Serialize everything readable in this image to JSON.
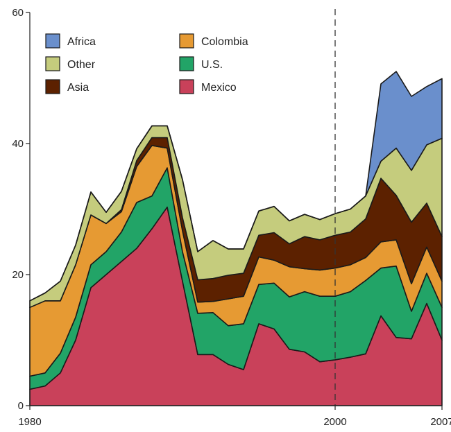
{
  "chart_data": {
    "type": "area",
    "stacked": true,
    "x": [
      1980,
      1981,
      1982,
      1983,
      1984,
      1985,
      1986,
      1987,
      1988,
      1989,
      1990,
      1991,
      1992,
      1993,
      1994,
      1995,
      1996,
      1997,
      1998,
      1999,
      2000,
      2001,
      2002,
      2003,
      2004,
      2005,
      2006,
      2007
    ],
    "series": [
      {
        "name": "Mexico",
        "color": "#c9415a",
        "values": [
          2.5,
          3.0,
          5.0,
          10.0,
          18.0,
          20.0,
          22.0,
          24.0,
          27.0,
          30.3,
          19.0,
          7.8,
          7.8,
          6.3,
          5.5,
          12.5,
          11.7,
          8.6,
          8.2,
          6.7,
          7.0,
          7.4,
          7.9,
          13.7,
          10.4,
          10.2,
          15.6,
          10.0
        ]
      },
      {
        "name": "U.S.",
        "color": "#22a467",
        "values": [
          2.0,
          2.0,
          3.0,
          3.5,
          3.5,
          3.5,
          4.5,
          7.0,
          5.0,
          6.0,
          4.5,
          6.3,
          6.4,
          5.9,
          7.0,
          6.0,
          7.0,
          8.0,
          9.2,
          10.0,
          9.7,
          10.0,
          11.2,
          7.3,
          10.9,
          4.2,
          4.6,
          5.0
        ]
      },
      {
        "name": "Colombia",
        "color": "#e69a33",
        "values": [
          10.5,
          11.0,
          8.0,
          8.0,
          7.6,
          4.3,
          3.1,
          5.5,
          7.7,
          3.0,
          3.2,
          1.7,
          1.7,
          4.1,
          4.2,
          4.2,
          3.5,
          4.6,
          3.5,
          4.0,
          4.3,
          4.1,
          3.5,
          4.0,
          4.0,
          4.2,
          4.0,
          4.0
        ]
      },
      {
        "name": "Asia",
        "color": "#5c2100",
        "values": [
          0,
          0,
          0,
          0,
          0,
          0,
          0.3,
          0.9,
          1.2,
          1.6,
          2.0,
          3.4,
          3.5,
          3.6,
          3.5,
          3.3,
          4.2,
          3.5,
          4.9,
          4.6,
          5.0,
          5.0,
          5.9,
          9.7,
          6.8,
          9.4,
          6.7,
          6.8
        ]
      },
      {
        "name": "Other",
        "color": "#c5cc7d",
        "values": [
          1.0,
          1.2,
          3.0,
          3.0,
          3.5,
          1.7,
          2.8,
          1.8,
          1.8,
          1.8,
          5.8,
          4.3,
          5.8,
          4.0,
          3.7,
          3.7,
          4.0,
          3.5,
          3.4,
          3.1,
          3.3,
          3.5,
          3.5,
          2.6,
          7.2,
          7.9,
          8.9,
          15.0
        ]
      },
      {
        "name": "Africa",
        "color": "#6a8fcc",
        "values": [
          0,
          0,
          0,
          0,
          0,
          0,
          0,
          0,
          0,
          0,
          0,
          0,
          0,
          0,
          0,
          0,
          0,
          0,
          0,
          0,
          0,
          0,
          0,
          11.8,
          11.7,
          11.3,
          8.9,
          9.1
        ]
      }
    ],
    "ylim": [
      0,
      60
    ],
    "y_ticks": [
      0,
      20,
      40,
      60
    ],
    "x_tick_labels": [
      "1980",
      "2000",
      "2007"
    ],
    "x_tick_values": [
      1980,
      2000,
      2007
    ],
    "vertical_line": {
      "x": 2000,
      "style": "dashed"
    },
    "legend_order": [
      "Africa",
      "Colombia",
      "Other",
      "U.S.",
      "Asia",
      "Mexico"
    ],
    "legend_position": "top-left",
    "grid": false,
    "title": "",
    "xlabel": "",
    "ylabel": ""
  }
}
